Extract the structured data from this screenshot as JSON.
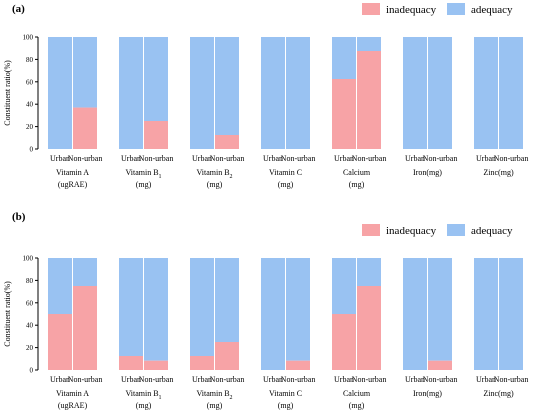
{
  "chart_data": [
    {
      "type": "bar",
      "stacked": true,
      "panel": "(a)",
      "ylabel": "Constituent ratio(%)",
      "ylim": [
        0,
        100
      ],
      "yticks": [
        0,
        20,
        40,
        60,
        80,
        100
      ],
      "legend": {
        "position": "top-right",
        "entries": [
          "inadequacy",
          "adequacy"
        ]
      },
      "colors": {
        "inadequacy": "#f7a3a6",
        "adequacy": "#99c2f2"
      },
      "groups": [
        {
          "label_lines": [
            "Vitamin A",
            "(ugRAE)"
          ],
          "sub": [
            "Urban",
            "Non-urban"
          ],
          "inadequacy": [
            0,
            37
          ]
        },
        {
          "label_lines": [
            "Vitamin B",
            "(mg)"
          ],
          "subscript": "1",
          "sub": [
            "Urban",
            "Non-urban"
          ],
          "inadequacy": [
            0,
            25
          ]
        },
        {
          "label_lines": [
            "Vitamin B",
            "(mg)"
          ],
          "subscript": "2",
          "sub": [
            "Urban",
            "Non-urban"
          ],
          "inadequacy": [
            0,
            12.5
          ]
        },
        {
          "label_lines": [
            "Vitamin C",
            "(mg)"
          ],
          "sub": [
            "Urban",
            "Non-urban"
          ],
          "inadequacy": [
            0,
            0
          ]
        },
        {
          "label_lines": [
            "Calcium",
            "(mg)"
          ],
          "sub": [
            "Urban",
            "Non-urban"
          ],
          "inadequacy": [
            62.5,
            87.5
          ]
        },
        {
          "label_lines": [
            "Iron(mg)"
          ],
          "sub": [
            "Urban",
            "Non-urban"
          ],
          "inadequacy": [
            0,
            0
          ]
        },
        {
          "label_lines": [
            "Zinc(mg)"
          ],
          "sub": [
            "Urban",
            "Non-urban"
          ],
          "inadequacy": [
            0,
            0
          ]
        }
      ]
    },
    {
      "type": "bar",
      "stacked": true,
      "panel": "(b)",
      "ylabel": "Constituent ratio(%)",
      "ylim": [
        0,
        100
      ],
      "yticks": [
        0,
        20,
        40,
        60,
        80,
        100
      ],
      "legend": {
        "position": "top-right",
        "entries": [
          "inadequacy",
          "adequacy"
        ]
      },
      "colors": {
        "inadequacy": "#f7a3a6",
        "adequacy": "#99c2f2"
      },
      "groups": [
        {
          "label_lines": [
            "Vitamin A",
            "(ugRAE)"
          ],
          "sub": [
            "Urban",
            "Non-urban"
          ],
          "inadequacy": [
            50,
            75
          ]
        },
        {
          "label_lines": [
            "Vitamin B",
            "(mg)"
          ],
          "subscript": "1",
          "sub": [
            "Urban",
            "Non-urban"
          ],
          "inadequacy": [
            12.5,
            8.3
          ]
        },
        {
          "label_lines": [
            "Vitamin B",
            "(mg)"
          ],
          "subscript": "2",
          "sub": [
            "Urban",
            "Non-urban"
          ],
          "inadequacy": [
            12.5,
            25
          ]
        },
        {
          "label_lines": [
            "Vitamin C",
            "(mg)"
          ],
          "sub": [
            "Urban",
            "Non-urban"
          ],
          "inadequacy": [
            0,
            8.3
          ]
        },
        {
          "label_lines": [
            "Calcium",
            "(mg)"
          ],
          "sub": [
            "Urban",
            "Non-urban"
          ],
          "inadequacy": [
            50,
            75
          ]
        },
        {
          "label_lines": [
            "Iron(mg)"
          ],
          "sub": [
            "Urban",
            "Non-urban"
          ],
          "inadequacy": [
            0,
            8.3
          ]
        },
        {
          "label_lines": [
            "Zinc(mg)"
          ],
          "sub": [
            "Urban",
            "Non-urban"
          ],
          "inadequacy": [
            0,
            0
          ]
        }
      ]
    }
  ]
}
